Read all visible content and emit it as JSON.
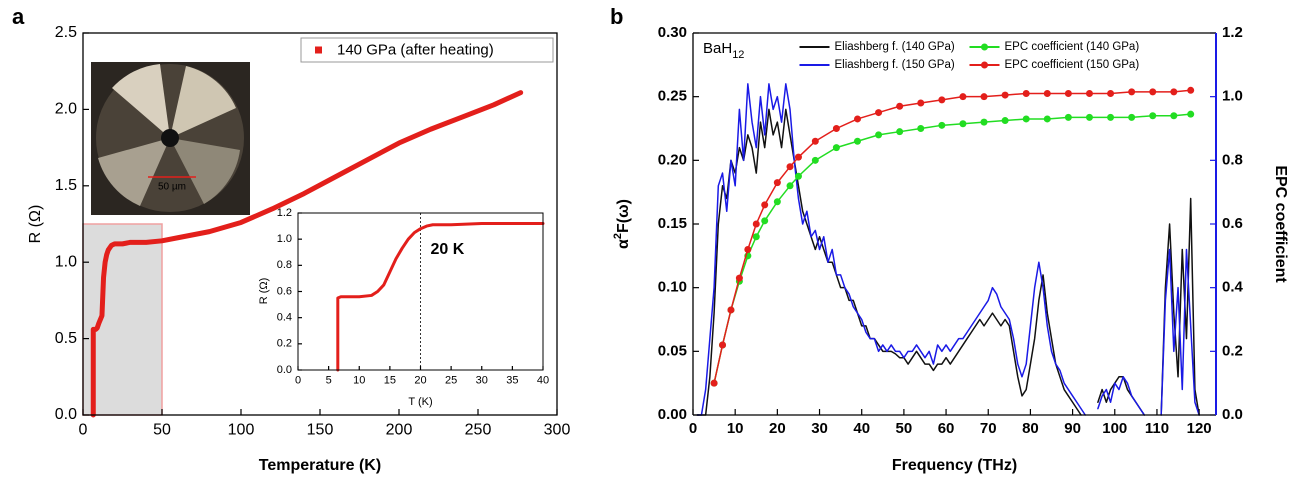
{
  "chart_data": [
    {
      "type": "line",
      "panel_label": "a",
      "xlabel": "Temperature (K)",
      "ylabel": "R (Ω)",
      "xlim": [
        0,
        300
      ],
      "xticks": [
        0,
        50,
        100,
        150,
        200,
        250,
        300
      ],
      "ylim": [
        0,
        2.5
      ],
      "yticks": [
        {
          "value": 0,
          "label": "0.0"
        },
        0.5,
        {
          "value": 1,
          "label": "1.0"
        },
        1.5,
        {
          "value": 2,
          "label": "2.0"
        },
        2.5
      ],
      "legend": "upper right",
      "image_label": "50 µm",
      "highlight": {
        "xlim": [
          0,
          50
        ],
        "ylim": [
          0,
          1.25
        ]
      },
      "series": [
        {
          "name": "140 GPa (after heating)",
          "color": "#e31f1b",
          "x": [
            6.5,
            6.5,
            7,
            7.5,
            8,
            9,
            10,
            12,
            13,
            14,
            15,
            16,
            18,
            20,
            25,
            30,
            40,
            50,
            60,
            80,
            100,
            120,
            140,
            160,
            180,
            200,
            220,
            240,
            260,
            277
          ],
          "values": [
            0,
            0.56,
            0.56,
            0.56,
            0.56,
            0.57,
            0.6,
            0.65,
            0.9,
            1.0,
            1.05,
            1.08,
            1.11,
            1.12,
            1.12,
            1.13,
            1.13,
            1.14,
            1.16,
            1.2,
            1.26,
            1.35,
            1.45,
            1.56,
            1.67,
            1.78,
            1.87,
            1.95,
            2.03,
            2.11
          ]
        }
      ]
    },
    {
      "type": "line",
      "xlabel": "T (K)",
      "ylabel": "R (Ω)",
      "xlim": [
        0,
        40
      ],
      "xticks": [
        0,
        5,
        10,
        15,
        20,
        25,
        30,
        35,
        40
      ],
      "ylim": [
        0,
        1.2
      ],
      "yticks": [
        {
          "value": 0,
          "label": "0.0"
        },
        0.2,
        0.4,
        0.6,
        0.8,
        {
          "value": 1,
          "label": "1.0"
        },
        1.2
      ],
      "vline": 20,
      "annotation": "20 K",
      "series": [
        {
          "color": "#e31f1b",
          "x": [
            6.5,
            6.5,
            7,
            8,
            10,
            12,
            13,
            14,
            15,
            16,
            17,
            18,
            19,
            20,
            21,
            22,
            25,
            30,
            35,
            40
          ],
          "values": [
            0,
            0.55,
            0.56,
            0.56,
            0.56,
            0.57,
            0.6,
            0.65,
            0.75,
            0.85,
            0.93,
            1.0,
            1.05,
            1.08,
            1.1,
            1.11,
            1.11,
            1.12,
            1.12,
            1.12
          ]
        }
      ]
    },
    {
      "type": "line",
      "panel_label": "b",
      "xlabel": "Frequency (THz)",
      "ylabel": [
        "α",
        "2",
        "F(ω)"
      ],
      "y2label": "EPC coefficient",
      "annotation": [
        "BaH",
        "12"
      ],
      "legend": "upper center",
      "y2color": "#1a1ae6",
      "xlim": [
        0,
        124
      ],
      "xticks": [
        0,
        10,
        20,
        30,
        40,
        50,
        60,
        70,
        80,
        90,
        100,
        110,
        120
      ],
      "ylim": [
        0,
        0.3
      ],
      "yticks": [
        {
          "value": 0,
          "label": "0.00"
        },
        0.05,
        {
          "value": 0.1,
          "label": "0.10"
        },
        0.15,
        {
          "value": 0.2,
          "label": "0.20"
        },
        0.25,
        {
          "value": 0.3,
          "label": "0.30"
        }
      ],
      "y2lim": [
        0,
        1.2
      ],
      "y2ticks": [
        {
          "value": 0,
          "label": "0.0"
        },
        0.2,
        0.4,
        0.6,
        0.8,
        {
          "value": 1,
          "label": "1.0"
        },
        1.2
      ],
      "series": [
        {
          "name": "Eliashberg f. (140 GPa)",
          "color": "#111111",
          "x": [
            1,
            2,
            3,
            4,
            5,
            6,
            7,
            8,
            9,
            10,
            11,
            12,
            13,
            14,
            15,
            16,
            17,
            18,
            19,
            20,
            21,
            22,
            23,
            24,
            25,
            26,
            27,
            28,
            29,
            30,
            31,
            32,
            33,
            34,
            35,
            36,
            37,
            38,
            39,
            40,
            41,
            42,
            43,
            44,
            45,
            46,
            47,
            48,
            49,
            50,
            51,
            52,
            53,
            54,
            55,
            56,
            57,
            58,
            59,
            60,
            61,
            62,
            63,
            64,
            65,
            66,
            67,
            68,
            69,
            70,
            71,
            72,
            73,
            74,
            75,
            76,
            77,
            78,
            79,
            80,
            81,
            82,
            83,
            84,
            85,
            86,
            87,
            88,
            89,
            90,
            91,
            92,
            93,
            94,
            95,
            96,
            97,
            98,
            99,
            100,
            101,
            102,
            103,
            104,
            105,
            106,
            107,
            108,
            109,
            110,
            111,
            112,
            113,
            114,
            115,
            116,
            117,
            118,
            119,
            120
          ],
          "values": [
            0,
            0,
            0,
            0.03,
            0.08,
            0.15,
            0.18,
            0.17,
            0.2,
            0.19,
            0.21,
            0.2,
            0.22,
            0.21,
            0.19,
            0.23,
            0.21,
            0.24,
            0.22,
            0.23,
            0.21,
            0.24,
            0.22,
            0.2,
            0.18,
            0.16,
            0.15,
            0.14,
            0.13,
            0.14,
            0.13,
            0.12,
            0.12,
            0.11,
            0.1,
            0.1,
            0.09,
            0.09,
            0.08,
            0.07,
            0.07,
            0.06,
            0.06,
            0.055,
            0.05,
            0.05,
            0.05,
            0.048,
            0.045,
            0.045,
            0.04,
            0.045,
            0.05,
            0.045,
            0.04,
            0.04,
            0.035,
            0.04,
            0.04,
            0.045,
            0.04,
            0.045,
            0.05,
            0.055,
            0.06,
            0.065,
            0.07,
            0.075,
            0.07,
            0.075,
            0.08,
            0.075,
            0.07,
            0.075,
            0.07,
            0.05,
            0.03,
            0.015,
            0.02,
            0.04,
            0.06,
            0.09,
            0.11,
            0.08,
            0.06,
            0.04,
            0.03,
            0.02,
            0.015,
            0.01,
            0.005,
            0,
            null,
            null,
            null,
            0.01,
            0.02,
            0.01,
            0.02,
            0.025,
            0.03,
            0.03,
            0.02,
            0.015,
            0.01,
            0.005,
            0,
            null,
            null,
            null,
            0,
            0.1,
            0.15,
            0.08,
            0.03,
            0.13,
            0.06,
            0.17,
            0.02,
            0
          ]
        },
        {
          "name": "Eliashberg f. (150 GPa)",
          "color": "#1a1ae6",
          "x": [
            1,
            2,
            3,
            4,
            5,
            6,
            7,
            8,
            9,
            10,
            11,
            12,
            13,
            14,
            15,
            16,
            17,
            18,
            19,
            20,
            21,
            22,
            23,
            24,
            25,
            26,
            27,
            28,
            29,
            30,
            31,
            32,
            33,
            34,
            35,
            36,
            37,
            38,
            39,
            40,
            41,
            42,
            43,
            44,
            45,
            46,
            47,
            48,
            49,
            50,
            51,
            52,
            53,
            54,
            55,
            56,
            57,
            58,
            59,
            60,
            61,
            62,
            63,
            64,
            65,
            66,
            67,
            68,
            69,
            70,
            71,
            72,
            73,
            74,
            75,
            76,
            77,
            78,
            79,
            80,
            81,
            82,
            83,
            84,
            85,
            86,
            87,
            88,
            89,
            90,
            91,
            92,
            93,
            94,
            95,
            96,
            97,
            98,
            99,
            100,
            101,
            102,
            103,
            104,
            105,
            106,
            107,
            108,
            109,
            110,
            111,
            112,
            113,
            114,
            115,
            116,
            117,
            118,
            119,
            120
          ],
          "values": [
            0,
            0,
            0.02,
            0.06,
            0.1,
            0.18,
            0.19,
            0.16,
            0.2,
            0.18,
            0.24,
            0.2,
            0.26,
            0.23,
            0.21,
            0.25,
            0.22,
            0.26,
            0.24,
            0.25,
            0.23,
            0.26,
            0.24,
            0.2,
            0.17,
            0.15,
            0.16,
            0.14,
            0.145,
            0.13,
            0.14,
            0.12,
            0.13,
            0.11,
            0.11,
            0.1,
            0.095,
            0.085,
            0.08,
            0.075,
            0.065,
            0.06,
            0.06,
            0.05,
            0.055,
            0.05,
            0.055,
            0.05,
            0.05,
            0.045,
            0.05,
            0.05,
            0.055,
            0.05,
            0.045,
            0.05,
            0.04,
            0.055,
            0.05,
            0.055,
            0.05,
            0.055,
            0.06,
            0.06,
            0.065,
            0.07,
            0.075,
            0.08,
            0.085,
            0.09,
            0.1,
            0.095,
            0.085,
            0.08,
            0.075,
            0.06,
            0.04,
            0.03,
            0.04,
            0.07,
            0.1,
            0.12,
            0.1,
            0.07,
            0.05,
            0.04,
            0.035,
            0.025,
            0.02,
            0.015,
            0.01,
            0.005,
            0,
            null,
            null,
            0.005,
            0.015,
            0.02,
            0.01,
            0.025,
            0.02,
            0.03,
            0.025,
            0.015,
            0.01,
            0.005,
            0,
            null,
            null,
            null,
            0,
            0.09,
            0.13,
            0.05,
            0.1,
            0.02,
            0.13,
            0.07,
            0.01,
            0
          ]
        },
        {
          "name": "EPC coefficient (140 GPa)",
          "color": "#22dd22",
          "axis": "y2",
          "marker": "circle",
          "x": [
            5,
            7,
            9,
            11,
            13,
            15,
            17,
            20,
            23,
            25,
            29,
            34,
            39,
            44,
            49,
            54,
            59,
            64,
            69,
            74,
            79,
            84,
            89,
            94,
            99,
            104,
            109,
            114,
            118
          ],
          "values": [
            0.1,
            0.22,
            0.33,
            0.42,
            0.5,
            0.56,
            0.61,
            0.67,
            0.72,
            0.75,
            0.8,
            0.84,
            0.86,
            0.88,
            0.89,
            0.9,
            0.91,
            0.915,
            0.92,
            0.925,
            0.93,
            0.93,
            0.935,
            0.935,
            0.935,
            0.935,
            0.94,
            0.94,
            0.945
          ]
        },
        {
          "name": "EPC coefficient (150 GPa)",
          "color": "#e31f1b",
          "axis": "y2",
          "marker": "circle",
          "x": [
            5,
            7,
            9,
            11,
            13,
            15,
            17,
            20,
            23,
            25,
            29,
            34,
            39,
            44,
            49,
            54,
            59,
            64,
            69,
            74,
            79,
            84,
            89,
            94,
            99,
            104,
            109,
            114,
            118
          ],
          "values": [
            0.1,
            0.22,
            0.33,
            0.43,
            0.52,
            0.6,
            0.66,
            0.73,
            0.78,
            0.81,
            0.86,
            0.9,
            0.93,
            0.95,
            0.97,
            0.98,
            0.99,
            1.0,
            1.0,
            1.005,
            1.01,
            1.01,
            1.01,
            1.01,
            1.01,
            1.015,
            1.015,
            1.015,
            1.02
          ]
        }
      ]
    }
  ]
}
